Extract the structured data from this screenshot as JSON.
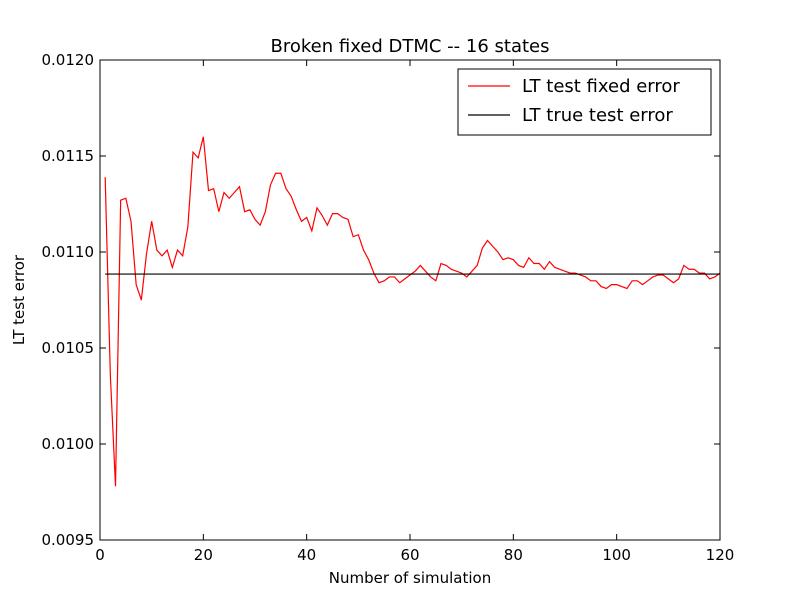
{
  "chart_data": {
    "type": "line",
    "title": "Broken fixed DTMC -- 16 states",
    "xlabel": "Number of simulation",
    "ylabel": "LT test error",
    "xlim": [
      0,
      120
    ],
    "ylim": [
      0.0095,
      0.012
    ],
    "x_ticks": [
      0,
      20,
      40,
      60,
      80,
      100,
      120
    ],
    "y_ticks": [
      0.0095,
      0.01,
      0.0105,
      0.011,
      0.0115,
      0.012
    ],
    "y_tick_labels": [
      "0.0095",
      "0.0100",
      "0.0105",
      "0.0110",
      "0.0115",
      "0.0120"
    ],
    "grid": false,
    "legend_position": "top-right",
    "series": [
      {
        "name": "LT test fixed error",
        "color": "#ff0000",
        "x": [
          1,
          2,
          3,
          4,
          5,
          6,
          7,
          8,
          9,
          10,
          11,
          12,
          13,
          14,
          15,
          16,
          17,
          18,
          19,
          20,
          21,
          22,
          23,
          24,
          25,
          26,
          27,
          28,
          29,
          30,
          31,
          32,
          33,
          34,
          35,
          36,
          37,
          38,
          39,
          40,
          41,
          42,
          43,
          44,
          45,
          46,
          47,
          48,
          49,
          50,
          51,
          52,
          53,
          54,
          55,
          56,
          57,
          58,
          59,
          60,
          61,
          62,
          63,
          64,
          65,
          66,
          67,
          68,
          69,
          70,
          71,
          72,
          73,
          74,
          75,
          76,
          77,
          78,
          79,
          80,
          81,
          82,
          83,
          84,
          85,
          86,
          87,
          88,
          89,
          90,
          91,
          92,
          93,
          94,
          95,
          96,
          97,
          98,
          99,
          100,
          101,
          102,
          103,
          104,
          105,
          106,
          107,
          108,
          109,
          110,
          111,
          112,
          113,
          114,
          115,
          116,
          117,
          118,
          119,
          120
        ],
        "y": [
          0.01139,
          0.01036,
          0.00978,
          0.01127,
          0.01128,
          0.01116,
          0.01083,
          0.01075,
          0.01099,
          0.01116,
          0.01101,
          0.01098,
          0.01101,
          0.01092,
          0.01101,
          0.01098,
          0.01113,
          0.01152,
          0.01149,
          0.0116,
          0.01132,
          0.01133,
          0.01121,
          0.01131,
          0.01128,
          0.01131,
          0.01134,
          0.01121,
          0.01122,
          0.01117,
          0.01114,
          0.01121,
          0.01135,
          0.01141,
          0.01141,
          0.01133,
          0.01129,
          0.01122,
          0.01116,
          0.01118,
          0.01111,
          0.01123,
          0.01119,
          0.01114,
          0.0112,
          0.0112,
          0.01118,
          0.01117,
          0.01108,
          0.01109,
          0.01101,
          0.01096,
          0.01089,
          0.01084,
          0.01085,
          0.01087,
          0.01087,
          0.01084,
          0.01086,
          0.01088,
          0.0109,
          0.01093,
          0.0109,
          0.01087,
          0.01085,
          0.01094,
          0.01093,
          0.01091,
          0.0109,
          0.01089,
          0.01087,
          0.0109,
          0.01093,
          0.01102,
          0.01106,
          0.01103,
          0.011,
          0.01096,
          0.01097,
          0.01096,
          0.01093,
          0.01092,
          0.01097,
          0.01094,
          0.01094,
          0.01091,
          0.01095,
          0.01092,
          0.01091,
          0.0109,
          0.01089,
          0.01089,
          0.01088,
          0.01087,
          0.01085,
          0.01085,
          0.01082,
          0.01081,
          0.01083,
          0.01083,
          0.01082,
          0.01081,
          0.01085,
          0.01085,
          0.01083,
          0.01085,
          0.01087,
          0.01088,
          0.01088,
          0.01086,
          0.01084,
          0.01086,
          0.01093,
          0.01091,
          0.01091,
          0.01089,
          0.01089,
          0.01086,
          0.01087,
          0.01089
        ]
      },
      {
        "name": "LT true test error",
        "color": "#000000",
        "x": [
          1,
          120
        ],
        "y": [
          0.010885,
          0.010885
        ]
      }
    ]
  }
}
